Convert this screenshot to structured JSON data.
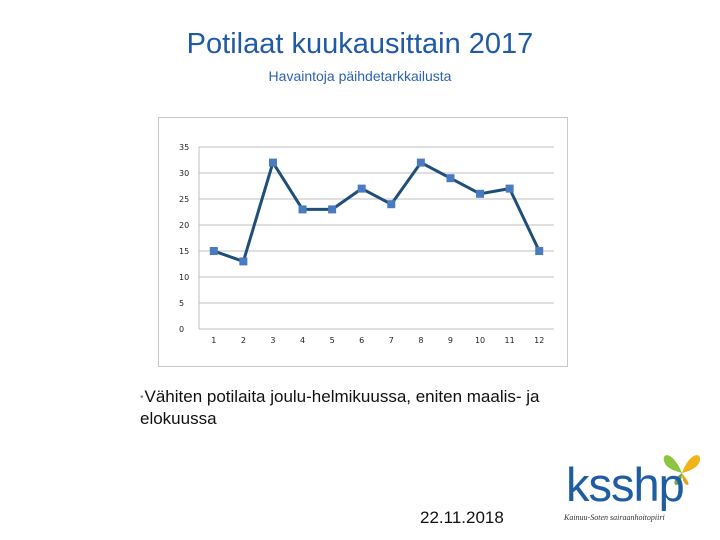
{
  "title": "Potilaat kuukausittain 2017",
  "subtitle": "Havaintoja päihdetarkkailusta",
  "note": "Vähiten potilaita joulu-helmikuussa, eniten maalis- ja elokuussa",
  "logo": {
    "text": "ksshp",
    "tagline": "Kainuu-Soten sairaanhoitopiiri",
    "icon": "butterfly-icon"
  },
  "date": "22.11.2018",
  "chart_data": {
    "type": "line",
    "title": "",
    "xlabel": "",
    "ylabel": "",
    "categories": [
      "1",
      "2",
      "3",
      "4",
      "5",
      "6",
      "7",
      "8",
      "9",
      "10",
      "11",
      "12"
    ],
    "values": [
      15,
      13,
      32,
      23,
      23,
      27,
      24,
      32,
      29,
      26,
      27,
      15
    ],
    "ylim": [
      0,
      35
    ],
    "yticks": [
      "0",
      "5",
      "10",
      "15",
      "20",
      "25",
      "30",
      "35"
    ],
    "grid": true,
    "legend": "none",
    "colors": {
      "line": "#1f4e79",
      "marker": "#4a7bc0",
      "grid": "#bfbfbf"
    }
  }
}
